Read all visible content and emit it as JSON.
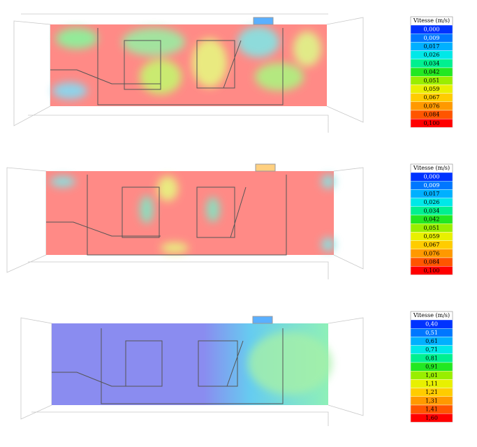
{
  "panels": [
    {
      "legend": {
        "title": "Vitesse (m/s)",
        "labels": [
          "0,000",
          "0,009",
          "0,017",
          "0,026",
          "0,034",
          "0,042",
          "0,051",
          "0,059",
          "0,067",
          "0,076",
          "0,084",
          "0,100"
        ],
        "colors": [
          "#0033ff",
          "#0077ff",
          "#00b0ff",
          "#00e8e8",
          "#00f090",
          "#22e822",
          "#99ee00",
          "#e8f000",
          "#ffcc00",
          "#ff9900",
          "#ff5500",
          "#ff0000"
        ]
      }
    },
    {
      "legend": {
        "title": "Vitesse (m/s)",
        "labels": [
          "0,000",
          "0,009",
          "0,017",
          "0,026",
          "0,034",
          "0,042",
          "0,051",
          "0,059",
          "0,067",
          "0,076",
          "0,084",
          "0,100"
        ],
        "colors": [
          "#0033ff",
          "#0077ff",
          "#00b0ff",
          "#00e8e8",
          "#00f090",
          "#22e822",
          "#99ee00",
          "#e8f000",
          "#ffcc00",
          "#ff9900",
          "#ff5500",
          "#ff0000"
        ]
      }
    },
    {
      "legend": {
        "title": "Vitesse (m/s)",
        "labels": [
          "0,40",
          "0,51",
          "0,61",
          "0,71",
          "0,81",
          "0,91",
          "1,01",
          "1,11",
          "1,21",
          "1,31",
          "1,41",
          "1,60"
        ],
        "colors": [
          "#0033ff",
          "#0077ff",
          "#00b0ff",
          "#00e8e8",
          "#00f090",
          "#22e822",
          "#99ee00",
          "#e8f000",
          "#ffcc00",
          "#ff9900",
          "#ff5500",
          "#ff0000"
        ]
      }
    }
  ]
}
